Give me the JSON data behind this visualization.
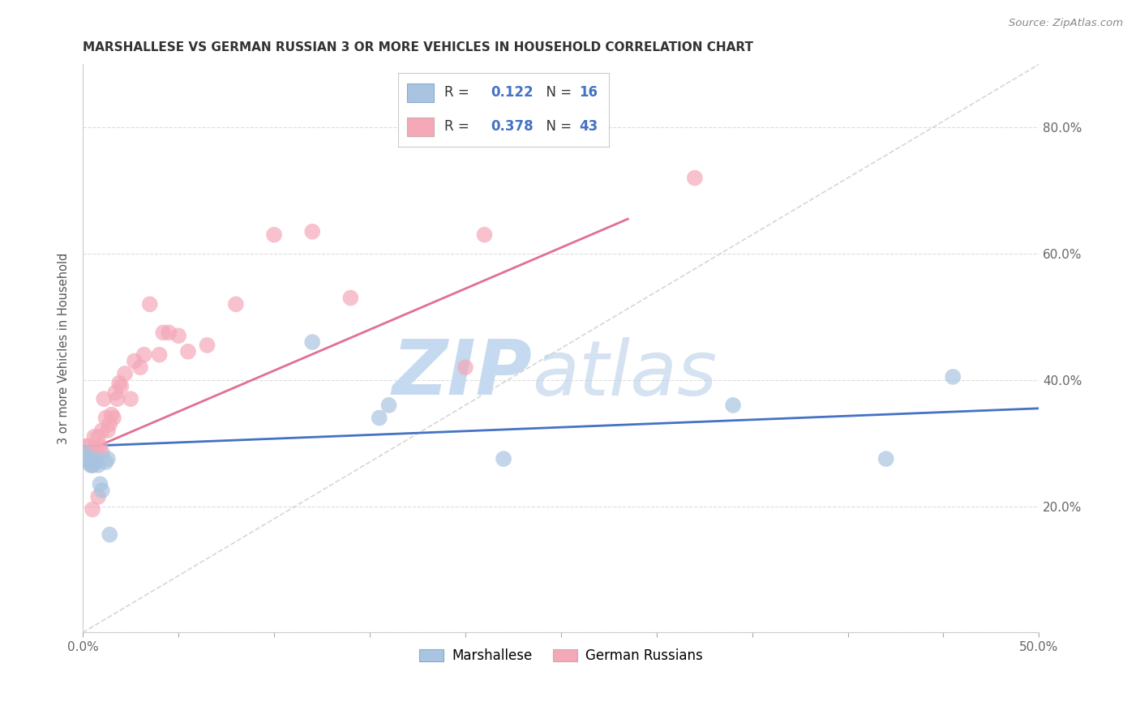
{
  "title": "MARSHALLESE VS GERMAN RUSSIAN 3 OR MORE VEHICLES IN HOUSEHOLD CORRELATION CHART",
  "source": "Source: ZipAtlas.com",
  "ylabel": "3 or more Vehicles in Household",
  "xlim": [
    0.0,
    0.5
  ],
  "ylim": [
    0.0,
    0.9
  ],
  "xticks": [
    0.0,
    0.05,
    0.1,
    0.15,
    0.2,
    0.25,
    0.3,
    0.35,
    0.4,
    0.45,
    0.5
  ],
  "yticks": [
    0.0,
    0.2,
    0.4,
    0.6,
    0.8
  ],
  "marshallese_color": "#a8c4e0",
  "german_russian_color": "#f4a8b8",
  "marshallese_line_color": "#4472c4",
  "german_russian_line_color": "#e07090",
  "diagonal_color": "#cccccc",
  "marshallese_x": [
    0.001,
    0.002,
    0.003,
    0.004,
    0.005,
    0.006,
    0.007,
    0.008,
    0.009,
    0.01,
    0.012,
    0.013,
    0.014,
    0.12,
    0.155,
    0.16,
    0.22,
    0.34,
    0.42,
    0.455
  ],
  "marshallese_y": [
    0.285,
    0.275,
    0.27,
    0.265,
    0.265,
    0.275,
    0.27,
    0.265,
    0.235,
    0.225,
    0.27,
    0.275,
    0.155,
    0.46,
    0.34,
    0.36,
    0.275,
    0.36,
    0.275,
    0.405
  ],
  "german_russian_x": [
    0.001,
    0.002,
    0.003,
    0.004,
    0.005,
    0.005,
    0.006,
    0.007,
    0.008,
    0.009,
    0.01,
    0.01,
    0.011,
    0.012,
    0.013,
    0.014,
    0.015,
    0.016,
    0.017,
    0.018,
    0.019,
    0.02,
    0.022,
    0.025,
    0.027,
    0.03,
    0.032,
    0.035,
    0.04,
    0.042,
    0.045,
    0.05,
    0.055,
    0.065,
    0.08,
    0.1,
    0.12,
    0.14,
    0.2,
    0.21,
    0.32,
    0.005,
    0.008
  ],
  "german_russian_y": [
    0.295,
    0.28,
    0.295,
    0.27,
    0.27,
    0.265,
    0.31,
    0.29,
    0.31,
    0.295,
    0.285,
    0.32,
    0.37,
    0.34,
    0.32,
    0.33,
    0.345,
    0.34,
    0.38,
    0.37,
    0.395,
    0.39,
    0.41,
    0.37,
    0.43,
    0.42,
    0.44,
    0.52,
    0.44,
    0.475,
    0.475,
    0.47,
    0.445,
    0.455,
    0.52,
    0.63,
    0.635,
    0.53,
    0.42,
    0.63,
    0.72,
    0.195,
    0.215
  ],
  "marshallese_line_x": [
    0.0,
    0.5
  ],
  "marshallese_line_y": [
    0.295,
    0.355
  ],
  "german_russian_line_x": [
    0.0,
    0.285
  ],
  "german_russian_line_y": [
    0.285,
    0.655
  ],
  "diagonal_line_x": [
    0.0,
    0.5
  ],
  "diagonal_line_y": [
    0.0,
    0.9
  ],
  "background_color": "#ffffff",
  "grid_color": "#dddddd"
}
